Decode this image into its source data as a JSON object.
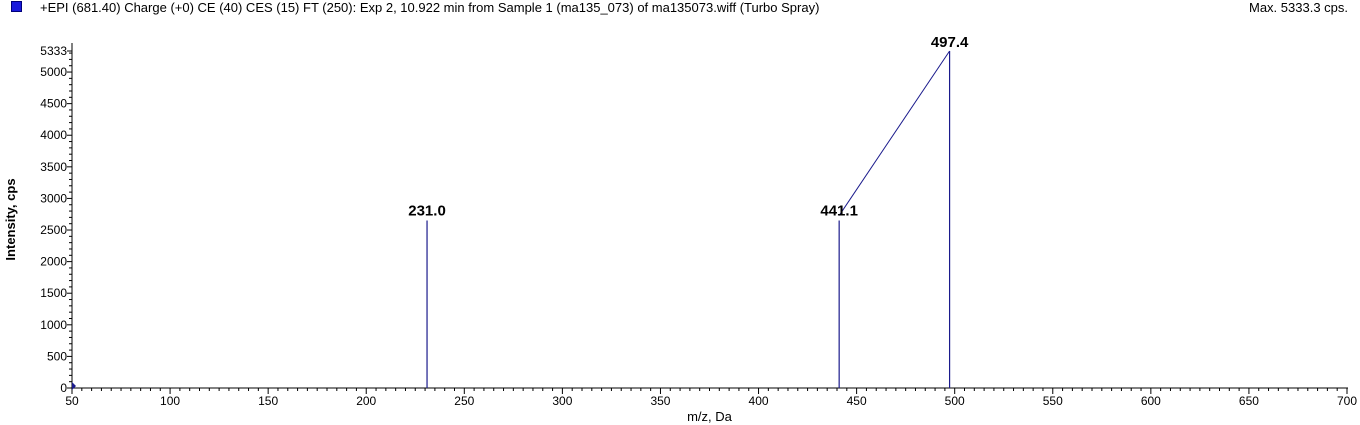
{
  "header": {
    "title": "+EPI (681.40) Charge (+0) CE (40) CES (15) FT (250): Exp 2, 10.922 min from Sample 1 (ma135_073) of ma135073.wiff (Turbo Spray)",
    "max_label": "Max. 5333.3 cps."
  },
  "colors": {
    "peak": "#1a1a8c",
    "legend": "#1a1adc"
  },
  "chart_data": {
    "type": "bar",
    "xlabel": "m/z, Da",
    "ylabel": "Intensity, cps",
    "xlim": [
      50,
      700
    ],
    "ylim": [
      0,
      5333
    ],
    "x_ticks": [
      50,
      100,
      150,
      200,
      250,
      300,
      350,
      400,
      450,
      500,
      550,
      600,
      650,
      700
    ],
    "y_ticks": [
      0,
      500,
      1000,
      1500,
      2000,
      2500,
      3000,
      3500,
      4000,
      4500,
      5000
    ],
    "y_top_label": "5333",
    "peaks": [
      {
        "mz": 231.0,
        "intensity": 2650,
        "label": "231.0"
      },
      {
        "mz": 441.1,
        "intensity": 2650,
        "label": "441.1"
      },
      {
        "mz": 497.4,
        "intensity": 5333,
        "label": "497.4"
      }
    ],
    "leader_line": {
      "from_mz": 441.1,
      "to_mz": 497.4
    },
    "grid": false
  }
}
